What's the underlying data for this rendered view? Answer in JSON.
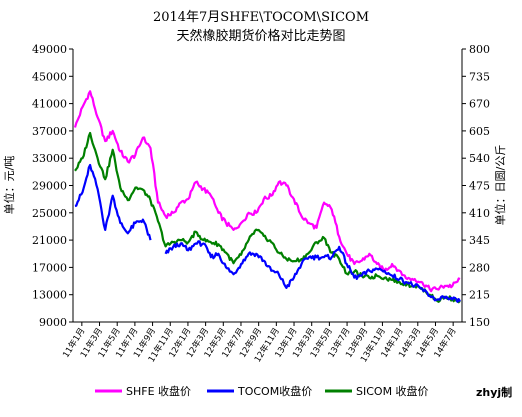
{
  "chart_data": {
    "type": "line",
    "title": "2014年7月SHFE\\TOCOM\\SICOM",
    "subtitle": "天然橡胶期货价格对比走势图",
    "y_left": {
      "label": "单位：元/吨",
      "min": 9000,
      "max": 49000,
      "ticks": [
        9000,
        13000,
        17000,
        21000,
        25000,
        29000,
        33000,
        37000,
        41000,
        45000,
        49000
      ]
    },
    "y_right": {
      "label": "单位：日圆/公斤",
      "min": 150,
      "max": 800,
      "ticks": [
        150,
        215,
        280,
        345,
        410,
        475,
        540,
        605,
        670,
        735,
        800
      ]
    },
    "x_tick_labels": [
      "11年1月",
      "11年3月",
      "11年5月",
      "11年7月",
      "11年9月",
      "11年11月",
      "12年1月",
      "12年3月",
      "12年5月",
      "12年7月",
      "12年9月",
      "12年11月",
      "13年1月",
      "13年3月",
      "13年5月",
      "13年7月",
      "13年9月",
      "13年11月",
      "14年1月",
      "14年3月",
      "14年5月",
      "14年7月"
    ],
    "series": [
      {
        "name": "SHFE 收盘价",
        "axis": "left",
        "color": "#ff00ff",
        "values": [
          37500,
          40500,
          42800,
          39000,
          35500,
          37000,
          34000,
          32500,
          33500,
          36000,
          34500,
          26500,
          24500,
          25000,
          26500,
          27000,
          29500,
          28500,
          27500,
          25000,
          23500,
          22500,
          23500,
          25000,
          25000,
          27000,
          27500,
          29500,
          29000,
          27000,
          24500,
          23500,
          22800,
          26500,
          25500,
          21500,
          19000,
          17500,
          18000,
          19000,
          17500,
          16500,
          17500,
          16500,
          15300,
          15300,
          14800,
          13800,
          13800,
          14300,
          14300,
          15300
        ]
      },
      {
        "name": "TOCOM收盘价",
        "axis": "left",
        "color": "#0000ff",
        "values": [
          26000,
          28000,
          32000,
          28500,
          22500,
          27500,
          23500,
          22000,
          23500,
          24000,
          21000,
          null,
          19000,
          20000,
          20500,
          19500,
          20500,
          20500,
          18500,
          19000,
          17000,
          16000,
          17500,
          19000,
          19000,
          18000,
          16500,
          16000,
          14000,
          15500,
          17500,
          18500,
          18500,
          18500,
          18500,
          20000,
          17500,
          15500,
          15800,
          16500,
          16800,
          16500,
          15800,
          15300,
          14800,
          14300,
          13800,
          12800,
          12300,
          12500,
          12300,
          12000
        ]
      },
      {
        "name": "SICOM 收盘价",
        "axis": "right",
        "color": "#008000",
        "values": [
          510,
          540,
          600,
          540,
          490,
          560,
          470,
          440,
          470,
          465,
          440,
          390,
          330,
          340,
          345,
          340,
          365,
          345,
          340,
          335,
          315,
          290,
          310,
          345,
          370,
          355,
          340,
          315,
          300,
          295,
          300,
          315,
          340,
          350,
          315,
          300,
          265,
          270,
          260,
          255,
          260,
          255,
          250,
          245,
          240,
          235,
          230,
          215,
          200,
          210,
          205,
          200
        ]
      }
    ],
    "legend_position": "bottom",
    "grid": false
  },
  "credit": "zhyj制"
}
